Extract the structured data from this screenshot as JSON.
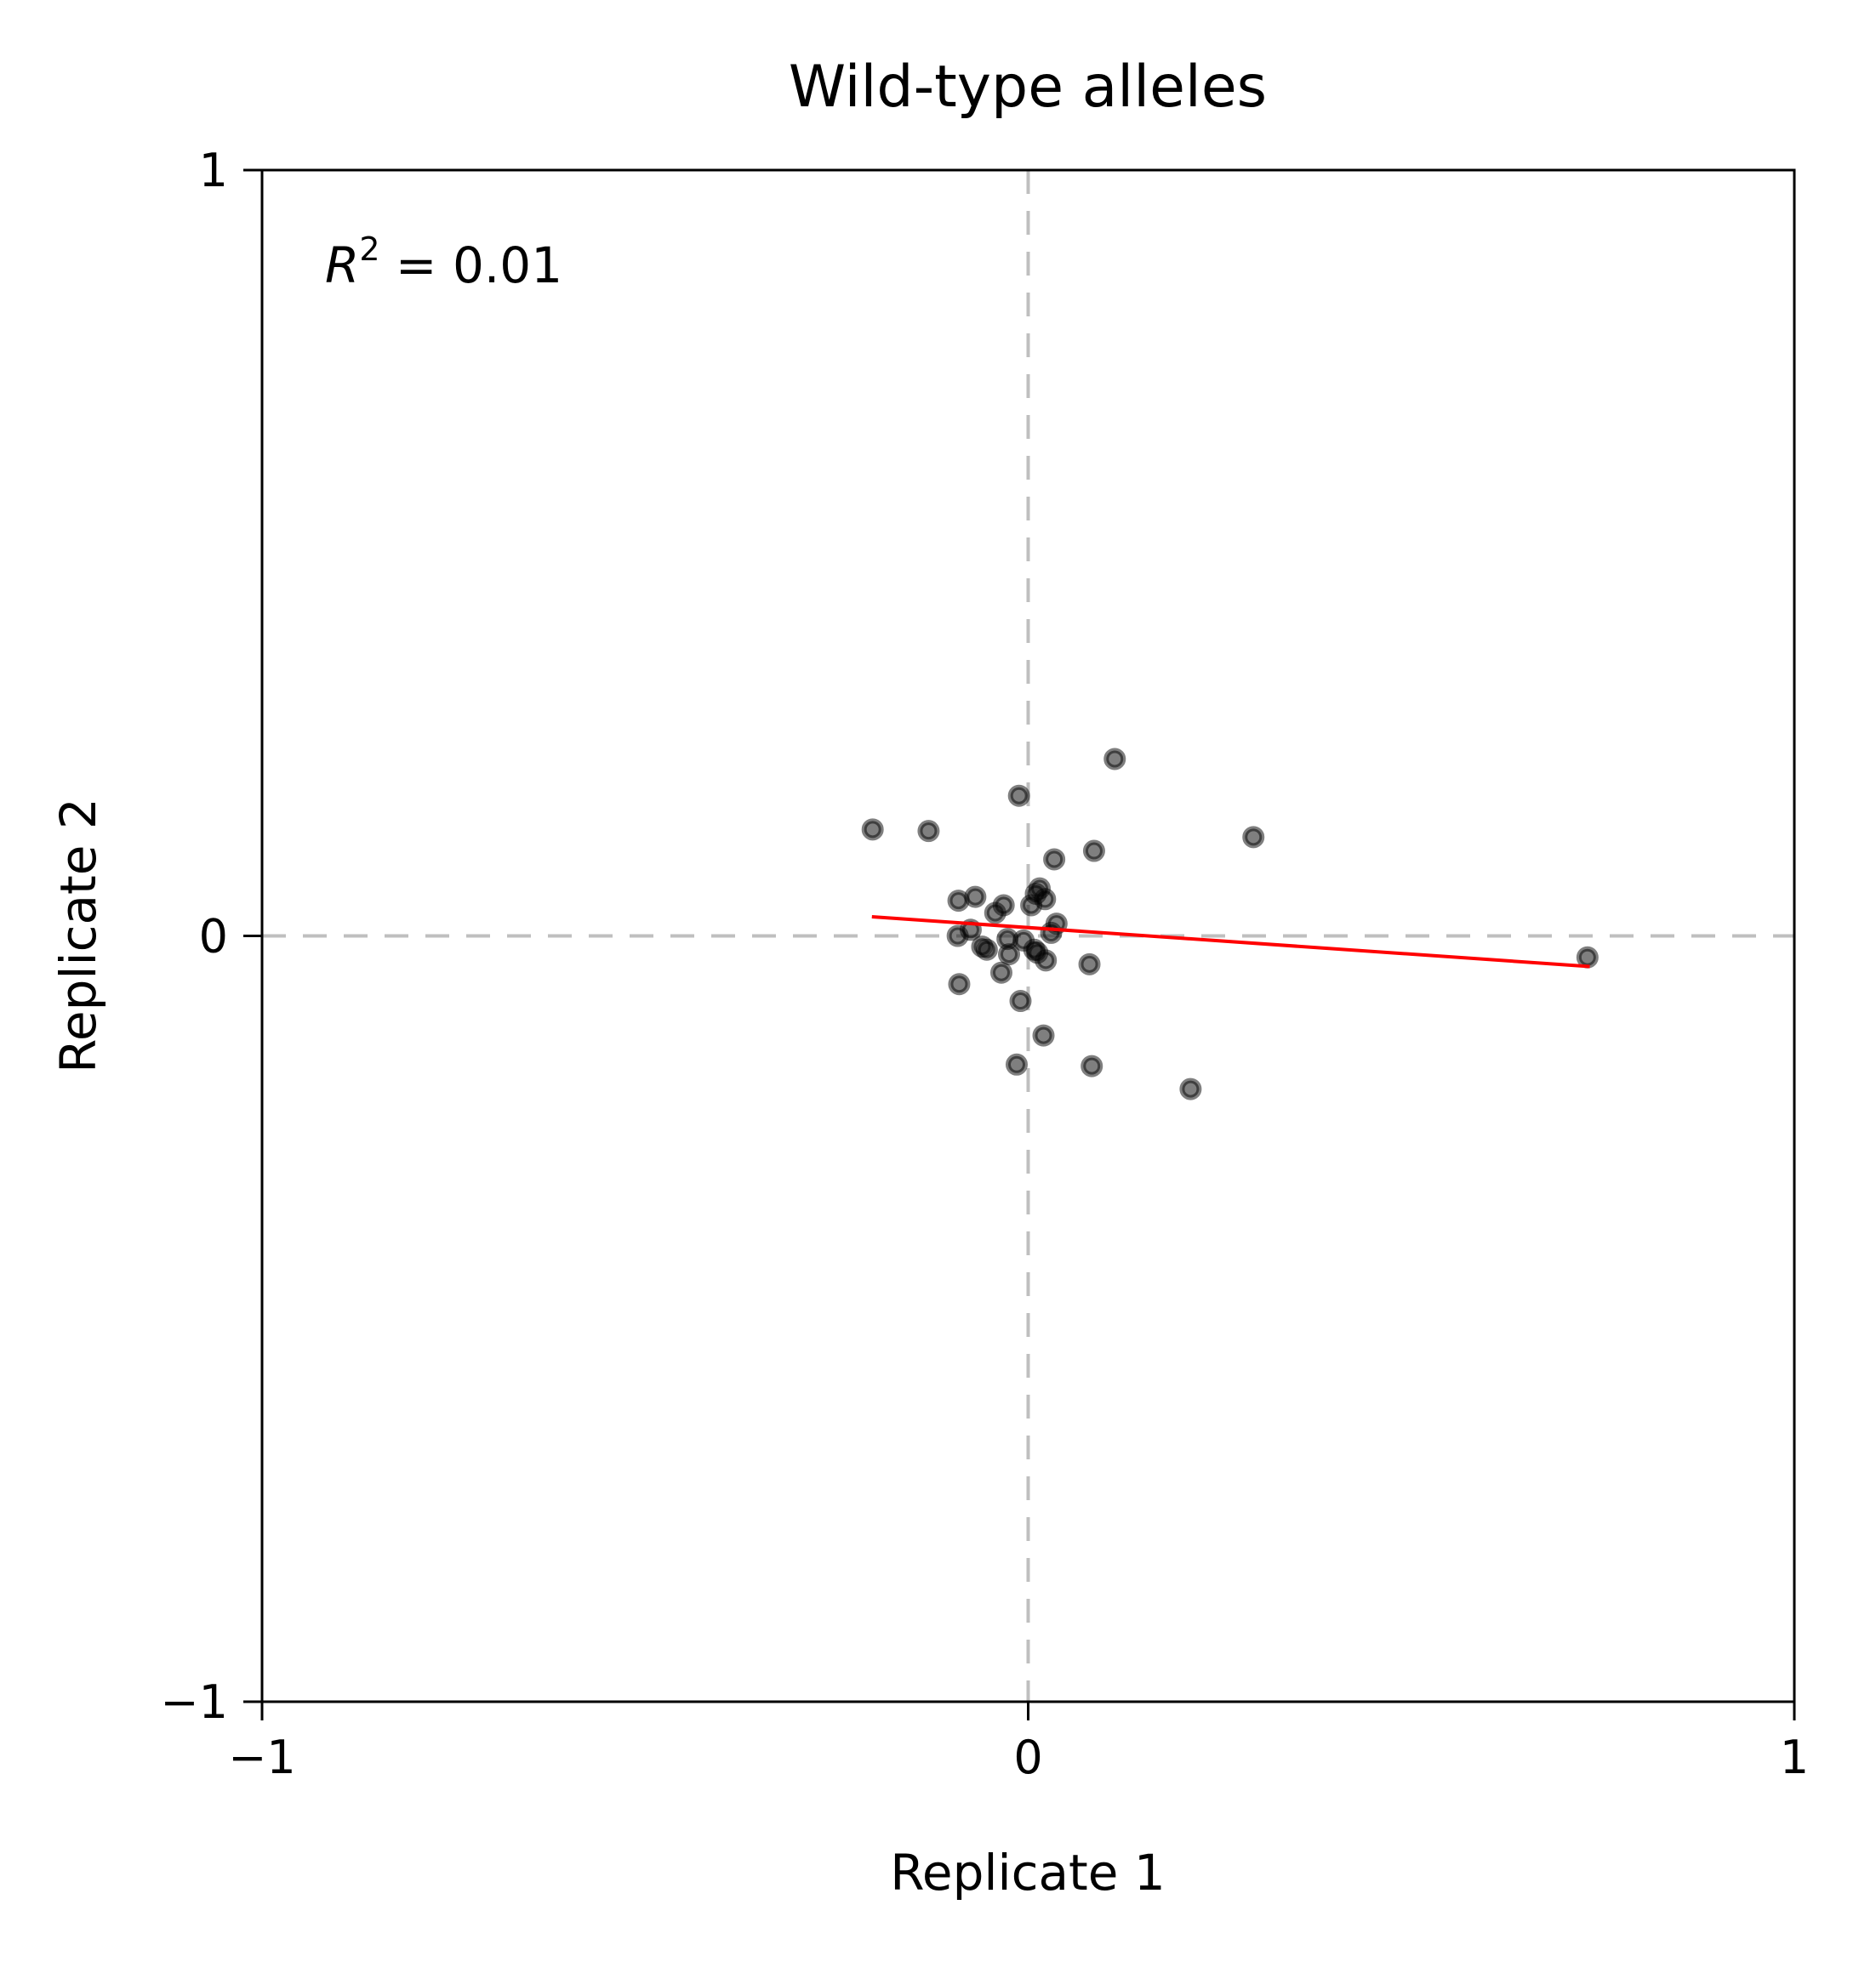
{
  "chart_data": {
    "type": "scatter",
    "title": "Wild-type alleles",
    "xlabel": "Replicate 1",
    "ylabel": "Replicate 2",
    "xlim": [
      -1,
      1
    ],
    "ylim": [
      -1,
      1
    ],
    "x_ticks": [
      {
        "value": -1,
        "label": "−1"
      },
      {
        "value": 0,
        "label": "0"
      },
      {
        "value": 1,
        "label": "1"
      }
    ],
    "y_ticks": [
      {
        "value": -1,
        "label": "−1"
      },
      {
        "value": 0,
        "label": "0"
      },
      {
        "value": 1,
        "label": "1"
      }
    ],
    "reference_lines": {
      "x": 0,
      "y": 0,
      "style": "dashed",
      "color": "#bfbfbf"
    },
    "annotation": {
      "r2_symbol": "R",
      "r2_exponent": "2",
      "r2_text": " = 0.01"
    },
    "point_color": "#000000",
    "point_alpha": 0.5,
    "fit_line": {
      "color": "#ff0000",
      "x": [
        -0.204,
        0.733
      ],
      "y": [
        0.025,
        -0.04
      ]
    },
    "points": [
      {
        "x": -0.203,
        "y": 0.139
      },
      {
        "x": -0.13,
        "y": 0.137
      },
      {
        "x": -0.012,
        "y": 0.183
      },
      {
        "x": 0.113,
        "y": 0.231
      },
      {
        "x": 0.294,
        "y": 0.129
      },
      {
        "x": 0.086,
        "y": 0.111
      },
      {
        "x": 0.034,
        "y": 0.1
      },
      {
        "x": -0.091,
        "y": 0.046
      },
      {
        "x": -0.069,
        "y": 0.051
      },
      {
        "x": -0.032,
        "y": 0.04
      },
      {
        "x": 0.004,
        "y": 0.04
      },
      {
        "x": 0.015,
        "y": 0.062
      },
      {
        "x": 0.022,
        "y": 0.048
      },
      {
        "x": 0.01,
        "y": 0.055
      },
      {
        "x": -0.043,
        "y": 0.03
      },
      {
        "x": -0.092,
        "y": 0.0
      },
      {
        "x": -0.075,
        "y": 0.008
      },
      {
        "x": -0.06,
        "y": -0.014
      },
      {
        "x": -0.054,
        "y": -0.018
      },
      {
        "x": -0.027,
        "y": -0.004
      },
      {
        "x": -0.025,
        "y": -0.024
      },
      {
        "x": -0.006,
        "y": -0.006
      },
      {
        "x": 0.008,
        "y": -0.018
      },
      {
        "x": 0.012,
        "y": -0.022
      },
      {
        "x": 0.023,
        "y": -0.032
      },
      {
        "x": 0.03,
        "y": 0.004
      },
      {
        "x": 0.037,
        "y": 0.016
      },
      {
        "x": -0.09,
        "y": -0.063
      },
      {
        "x": -0.035,
        "y": -0.048
      },
      {
        "x": -0.01,
        "y": -0.085
      },
      {
        "x": 0.08,
        "y": -0.037
      },
      {
        "x": 0.73,
        "y": -0.028
      },
      {
        "x": 0.02,
        "y": -0.13
      },
      {
        "x": -0.015,
        "y": -0.168
      },
      {
        "x": 0.083,
        "y": -0.17
      },
      {
        "x": 0.212,
        "y": -0.2
      }
    ]
  }
}
